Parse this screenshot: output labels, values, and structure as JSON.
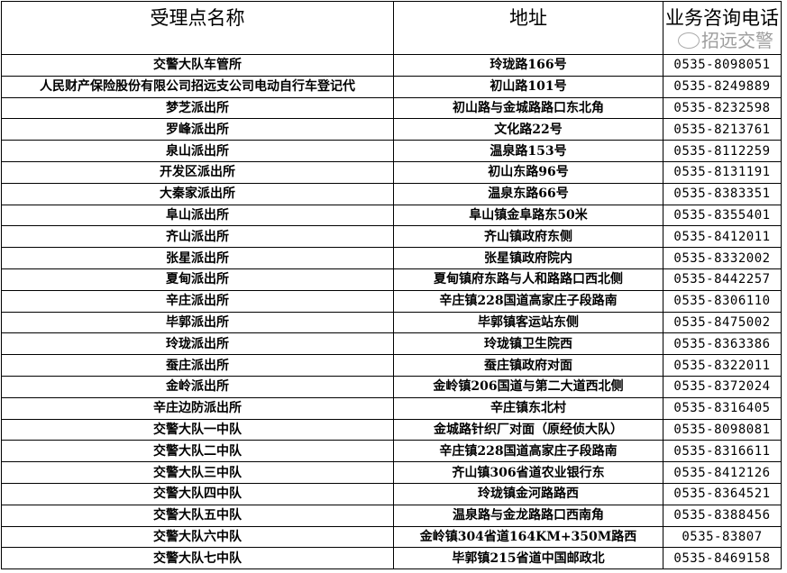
{
  "headers": {
    "name": "受理点名称",
    "address": "地址",
    "phone": "业务咨询电话"
  },
  "rows": [
    {
      "name": "交警大队车管所",
      "address": "玲珑路166号",
      "phone": "0535-8098051"
    },
    {
      "name": "人民财产保险股份有限公司招远支公司电动自行车登记代",
      "address": "初山路101号",
      "phone": "0535-8249889"
    },
    {
      "name": "梦芝派出所",
      "address": "初山路与金城路路口东北角",
      "phone": "0535-8232598"
    },
    {
      "name": "罗峰派出所",
      "address": "文化路22号",
      "phone": "0535-8213761"
    },
    {
      "name": "泉山派出所",
      "address": "温泉路153号",
      "phone": "0535-8112259"
    },
    {
      "name": "开发区派出所",
      "address": "初山东路96号",
      "phone": "0535-8131191"
    },
    {
      "name": "大秦家派出所",
      "address": "温泉东路66号",
      "phone": "0535-8383351"
    },
    {
      "name": "阜山派出所",
      "address": "阜山镇金阜路东50米",
      "phone": "0535-8355401"
    },
    {
      "name": "齐山派出所",
      "address": "齐山镇政府东侧",
      "phone": "0535-8412011"
    },
    {
      "name": "张星派出所",
      "address": "张星镇政府院内",
      "phone": "0535-8332002"
    },
    {
      "name": "夏甸派出所",
      "address": "夏甸镇府东路与人和路路口西北侧",
      "phone": "0535-8442257"
    },
    {
      "name": "辛庄派出所",
      "address": "辛庄镇228国道高家庄子段路南",
      "phone": "0535-8306110"
    },
    {
      "name": "毕郭派出所",
      "address": "毕郭镇客运站东侧",
      "phone": "0535-8475002"
    },
    {
      "name": "玲珑派出所",
      "address": "玲珑镇卫生院西",
      "phone": "0535-8363386"
    },
    {
      "name": "蚕庄派出所",
      "address": "蚕庄镇政府对面",
      "phone": "0535-8322011"
    },
    {
      "name": "金岭派出所",
      "address": "金岭镇206国道与第二大道西北侧",
      "phone": "0535-8372024"
    },
    {
      "name": "辛庄边防派出所",
      "address": "辛庄镇东北村",
      "phone": "0535-8316405"
    },
    {
      "name": "交警大队一中队",
      "address": "金城路针织厂对面（原经侦大队）",
      "phone": "0535-8098081"
    },
    {
      "name": "交警大队二中队",
      "address": "辛庄镇228国道高家庄子段路南",
      "phone": "0535-8316611"
    },
    {
      "name": "交警大队三中队",
      "address": "齐山镇306省道农业银行东",
      "phone": "0535-8412126"
    },
    {
      "name": "交警大队四中队",
      "address": "玲珑镇金河路路西",
      "phone": "0535-8364521"
    },
    {
      "name": "交警大队五中队",
      "address": "温泉路与金龙路路口西南角",
      "phone": "0535-8388456"
    },
    {
      "name": "交警大队六中队",
      "address": "金岭镇304省道164KM+350M路西",
      "phone": "0535-83807"
    },
    {
      "name": "交警大队七中队",
      "address": "毕郭镇215省道中国邮政北",
      "phone": "0535-8469158"
    }
  ],
  "watermark": "招远交警"
}
